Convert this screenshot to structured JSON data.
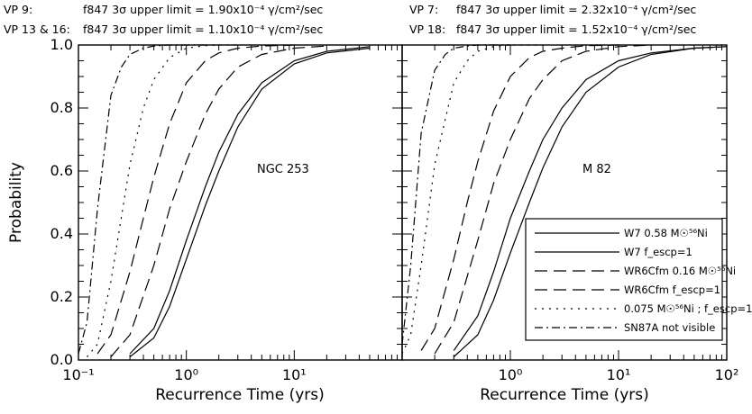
{
  "header": {
    "left": [
      {
        "vp": "VP  9:",
        "text": "f847 3σ upper limit = 1.90x10⁻⁴ γ/cm²/sec"
      },
      {
        "vp": "VP 13 & 16:",
        "text": "f847 3σ upper limit = 1.10x10⁻⁴ γ/cm²/sec"
      }
    ],
    "right": [
      {
        "vp": "VP  7:",
        "text": "f847 3σ upper limit = 2.32x10⁻⁴ γ/cm²/sec"
      },
      {
        "vp": "VP 18:",
        "text": "f847 3σ upper limit = 1.52x10⁻⁴ γ/cm²/sec"
      }
    ]
  },
  "legend": {
    "entries": [
      {
        "label": "W7 0.58 M☉⁵⁶Ni",
        "style": "solid"
      },
      {
        "label": "W7 f_escp=1",
        "style": "solid"
      },
      {
        "label": "WR6Cfm 0.16 M☉⁵⁶Ni",
        "style": "long-dash"
      },
      {
        "label": "WR6Cfm f_escp=1",
        "style": "long-dash"
      },
      {
        "label": "0.075 M☉⁵⁶Ni ; f_escp=1",
        "style": "dot"
      },
      {
        "label": "SN87A not visible",
        "style": "dash-dot"
      }
    ]
  },
  "chart_data": [
    {
      "type": "line",
      "panel_label": "NGC 253",
      "xlabel": "Recurrence Time (yrs)",
      "ylabel": "Probability",
      "xscale": "log",
      "xlim": [
        0.1,
        100
      ],
      "ylim": [
        0.0,
        1.0
      ],
      "x_tick_labels": [
        "10⁻¹",
        "10⁰",
        "10¹"
      ],
      "y_tick_labels": [
        "0.0",
        "0.2",
        "0.4",
        "0.6",
        "0.8",
        "1.0"
      ],
      "series": [
        {
          "name": "W7 0.58 M☉⁵⁶Ni",
          "style": "solid",
          "x": [
            0.3,
            0.5,
            0.7,
            1.0,
            1.5,
            2.0,
            3.0,
            5.0,
            10,
            20,
            50
          ],
          "y": [
            0.02,
            0.1,
            0.22,
            0.38,
            0.55,
            0.66,
            0.78,
            0.88,
            0.95,
            0.98,
            0.995
          ]
        },
        {
          "name": "W7 f_escp=1",
          "style": "solid",
          "x": [
            0.3,
            0.5,
            0.7,
            1.0,
            1.5,
            2.0,
            3.0,
            5.0,
            10,
            20,
            50
          ],
          "y": [
            0.01,
            0.07,
            0.17,
            0.32,
            0.49,
            0.6,
            0.74,
            0.86,
            0.94,
            0.975,
            0.99
          ]
        },
        {
          "name": "WR6Cfm 0.16 M☉⁵⁶Ni",
          "style": "long-dash",
          "x": [
            0.15,
            0.2,
            0.3,
            0.4,
            0.5,
            0.7,
            1.0,
            1.5,
            2.0,
            3.0,
            5.0,
            10
          ],
          "y": [
            0.02,
            0.08,
            0.28,
            0.45,
            0.58,
            0.75,
            0.88,
            0.95,
            0.975,
            0.99,
            0.997,
            1.0
          ]
        },
        {
          "name": "WR6Cfm f_escp=1",
          "style": "long-dash",
          "x": [
            0.2,
            0.3,
            0.5,
            0.7,
            1.0,
            1.5,
            2.0,
            3.0,
            5.0,
            10,
            20
          ],
          "y": [
            0.01,
            0.08,
            0.3,
            0.48,
            0.63,
            0.78,
            0.86,
            0.93,
            0.97,
            0.99,
            0.997
          ]
        },
        {
          "name": "0.075 M☉⁵⁶Ni ; f_escp=1",
          "style": "dot",
          "x": [
            0.12,
            0.15,
            0.2,
            0.3,
            0.4,
            0.5,
            0.7,
            1.0,
            1.5,
            2.0,
            3.0
          ],
          "y": [
            0.01,
            0.05,
            0.25,
            0.62,
            0.8,
            0.89,
            0.96,
            0.99,
            0.998,
            1.0,
            1.0
          ]
        },
        {
          "name": "SN87A not visible",
          "style": "dash-dot",
          "x": [
            0.1,
            0.12,
            0.15,
            0.2,
            0.25,
            0.3,
            0.4,
            0.5,
            0.7,
            1.0,
            1.5
          ],
          "y": [
            0.02,
            0.12,
            0.48,
            0.84,
            0.93,
            0.97,
            0.99,
            0.997,
            1.0,
            1.0,
            1.0
          ]
        }
      ]
    },
    {
      "type": "line",
      "panel_label": "M 82",
      "xlabel": "Recurrence Time (yrs)",
      "ylabel": "",
      "xscale": "log",
      "xlim": [
        0.1,
        100
      ],
      "ylim": [
        0.0,
        1.0
      ],
      "x_tick_labels": [
        "10⁰",
        "10¹",
        "10²"
      ],
      "y_tick_labels": [],
      "series": [
        {
          "name": "W7 0.58 M☉⁵⁶Ni",
          "style": "solid",
          "x": [
            0.3,
            0.5,
            0.7,
            1.0,
            1.5,
            2.0,
            3.0,
            5.0,
            10,
            20,
            50,
            100
          ],
          "y": [
            0.03,
            0.14,
            0.28,
            0.45,
            0.6,
            0.7,
            0.8,
            0.89,
            0.95,
            0.975,
            0.99,
            0.995
          ]
        },
        {
          "name": "W7 f_escp=1",
          "style": "solid",
          "x": [
            0.3,
            0.5,
            0.7,
            1.0,
            1.5,
            2.0,
            3.0,
            5.0,
            10,
            20,
            50,
            100
          ],
          "y": [
            0.01,
            0.08,
            0.19,
            0.34,
            0.5,
            0.61,
            0.74,
            0.85,
            0.93,
            0.97,
            0.99,
            0.995
          ]
        },
        {
          "name": "WR6Cfm 0.16 M☉⁵⁶Ni",
          "style": "long-dash",
          "x": [
            0.15,
            0.2,
            0.3,
            0.4,
            0.5,
            0.7,
            1.0,
            1.5,
            2.0,
            3.0,
            5.0,
            10
          ],
          "y": [
            0.03,
            0.1,
            0.32,
            0.5,
            0.63,
            0.79,
            0.9,
            0.96,
            0.98,
            0.99,
            0.998,
            1.0
          ]
        },
        {
          "name": "WR6Cfm f_escp=1",
          "style": "long-dash",
          "x": [
            0.2,
            0.3,
            0.5,
            0.7,
            1.0,
            1.5,
            2.0,
            3.0,
            5.0,
            10,
            20
          ],
          "y": [
            0.02,
            0.12,
            0.38,
            0.56,
            0.7,
            0.83,
            0.89,
            0.95,
            0.98,
            0.995,
            1.0
          ]
        },
        {
          "name": "0.075 M☉⁵⁶Ni ; f_escp=1",
          "style": "dot",
          "x": [
            0.1,
            0.12,
            0.15,
            0.2,
            0.3,
            0.4,
            0.5,
            0.7,
            1.0,
            1.5,
            2.0
          ],
          "y": [
            0.02,
            0.08,
            0.3,
            0.62,
            0.88,
            0.95,
            0.98,
            0.995,
            1.0,
            1.0,
            1.0
          ]
        },
        {
          "name": "SN87A not visible",
          "style": "dash-dot",
          "x": [
            0.1,
            0.12,
            0.15,
            0.2,
            0.25,
            0.3,
            0.4,
            0.5,
            0.7,
            1.0
          ],
          "y": [
            0.05,
            0.3,
            0.72,
            0.92,
            0.97,
            0.99,
            0.997,
            1.0,
            1.0,
            1.0
          ]
        }
      ]
    }
  ]
}
